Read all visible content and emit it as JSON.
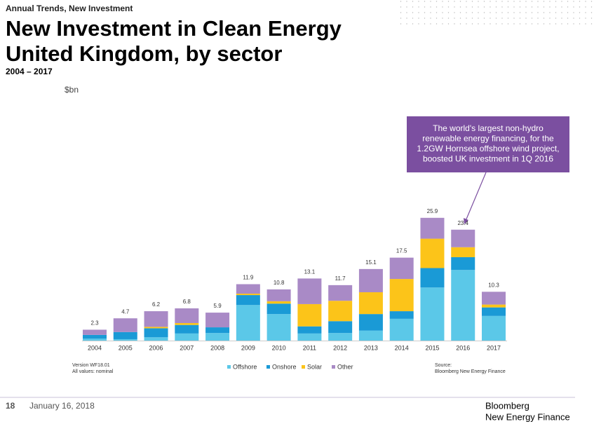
{
  "chart_data": {
    "type": "stacked_bar",
    "header": "Annual Trends, New Investment",
    "title": [
      "New Investment in Clean Energy",
      "United Kingdom, by sector"
    ],
    "subtitle": "2004 – 2017",
    "unit": "$bn",
    "categories": [
      "2004",
      "2005",
      "2006",
      "2007",
      "2008",
      "2009",
      "2010",
      "2011",
      "2012",
      "2013",
      "2014",
      "2015",
      "2016",
      "2017"
    ],
    "series": [
      {
        "name": "Offshore",
        "color": "#5bc8e8",
        "values": [
          0.4,
          0.3,
          0.7,
          1.5,
          1.6,
          7.5,
          5.6,
          1.5,
          1.6,
          2.1,
          4.6,
          11.2,
          14.9,
          5.2
        ]
      },
      {
        "name": "Onshore",
        "color": "#1a9ad6",
        "values": [
          0.8,
          1.5,
          1.9,
          1.8,
          1.2,
          2.1,
          2.2,
          1.5,
          2.5,
          3.5,
          1.6,
          4.1,
          2.7,
          1.8
        ]
      },
      {
        "name": "Solar",
        "color": "#fcc419",
        "values": [
          0,
          0,
          0.3,
          0.4,
          0,
          0.3,
          0.5,
          4.7,
          4.3,
          4.6,
          6.8,
          6.2,
          2.1,
          0.6
        ]
      },
      {
        "name": "Other",
        "color": "#a98ac6",
        "values": [
          1.1,
          2.9,
          3.3,
          3.1,
          3.1,
          2.0,
          2.5,
          5.4,
          3.3,
          4.9,
          4.5,
          4.4,
          3.7,
          2.7
        ]
      }
    ],
    "totals": [
      2.3,
      4.7,
      6.2,
      6.8,
      5.9,
      11.9,
      10.8,
      13.1,
      11.7,
      15.1,
      17.5,
      25.9,
      23.4,
      10.3
    ],
    "ylim": [
      0,
      27.5
    ],
    "annotation": [
      "The world's largest non-hydro",
      "renewable energy financing, for the",
      "1.2GW Hornsea offshore wind project,",
      "boosted UK investment in 1Q 2016"
    ],
    "notes": [
      "Version WF18.01",
      "All values: nominal"
    ],
    "source": [
      "Source:",
      "Bloomberg New Energy Finance"
    ]
  },
  "footer": {
    "page": "18",
    "date": "January 16, 2018",
    "logo": [
      "Bloomberg",
      "New Energy Finance"
    ]
  }
}
